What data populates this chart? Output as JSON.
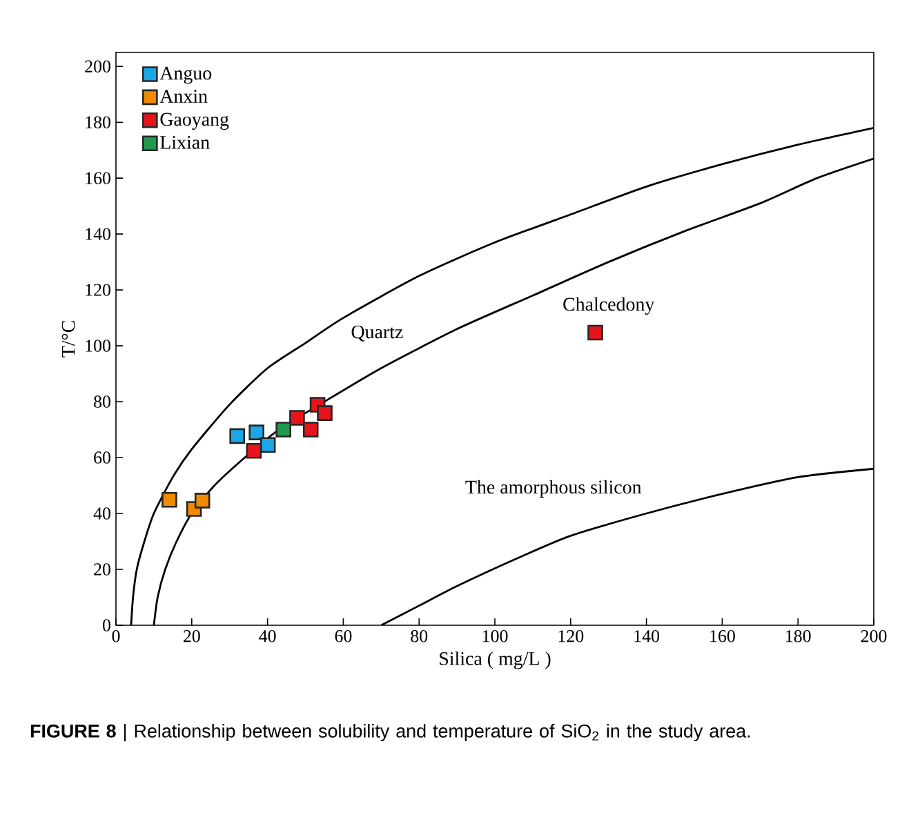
{
  "chart_data": {
    "type": "scatter",
    "xlabel": "Silica ( mg/L )",
    "ylabel": "T/°C",
    "xlim": [
      0,
      200
    ],
    "ylim": [
      0,
      205
    ],
    "xticks": [
      0,
      20,
      40,
      60,
      80,
      100,
      120,
      140,
      160,
      180,
      200
    ],
    "yticks": [
      0,
      20,
      40,
      60,
      80,
      100,
      120,
      140,
      160,
      180,
      200
    ],
    "legend": "top left",
    "grid": false,
    "series": [
      {
        "name": "Anguo",
        "marker": "square",
        "color": "#1aa7e8",
        "x": [
          32,
          37.1,
          40.1
        ],
        "values": [
          67.7,
          69,
          64.5
        ]
      },
      {
        "name": "Anxin",
        "marker": "square",
        "color": "#f08a00",
        "x": [
          14.1,
          20.6,
          22.8
        ],
        "values": [
          44.9,
          41.6,
          44.6
        ]
      },
      {
        "name": "Gaoyang",
        "marker": "square",
        "color": "#e8141b",
        "x": [
          36.4,
          47.8,
          51.4,
          53.2,
          55.1,
          126.5
        ],
        "values": [
          62.4,
          74.2,
          70,
          78.9,
          75.9,
          104.7
        ]
      },
      {
        "name": "Lixian",
        "marker": "square",
        "color": "#1f9a4a",
        "x": [
          44.2
        ],
        "values": [
          70
        ]
      },
      {
        "name": "Quartz",
        "type": "line",
        "color": "#000000",
        "x": [
          4,
          4.5,
          5.5,
          7.5,
          10,
          15,
          20,
          30,
          40,
          50,
          60,
          80,
          100,
          120,
          140,
          160,
          180,
          200
        ],
        "values": [
          0,
          10,
          20,
          30,
          40,
          53,
          63,
          79,
          92,
          101,
          110,
          125,
          137,
          147,
          157,
          165,
          172,
          178
        ]
      },
      {
        "name": "Chalcedony",
        "type": "line",
        "color": "#000000",
        "x": [
          10,
          11,
          13,
          16,
          20,
          26,
          34,
          43,
          55,
          70,
          90,
          110,
          130,
          150,
          170,
          185,
          200
        ],
        "values": [
          0,
          10,
          20,
          30,
          40,
          50,
          60,
          70,
          80,
          92,
          106,
          118,
          130,
          141,
          151,
          160,
          167
        ]
      },
      {
        "name": "The amorphous silicon",
        "type": "line",
        "color": "#000000",
        "x": [
          70,
          80,
          90,
          106,
          120,
          140,
          160,
          180,
          200
        ],
        "values": [
          0,
          7,
          14,
          24,
          32,
          40,
          47,
          53,
          56
        ]
      }
    ],
    "annotations": [
      "**FIGURE 8** | Relationship between solubility and temperature of SiO$_{2}$ in the study area."
    ]
  }
}
